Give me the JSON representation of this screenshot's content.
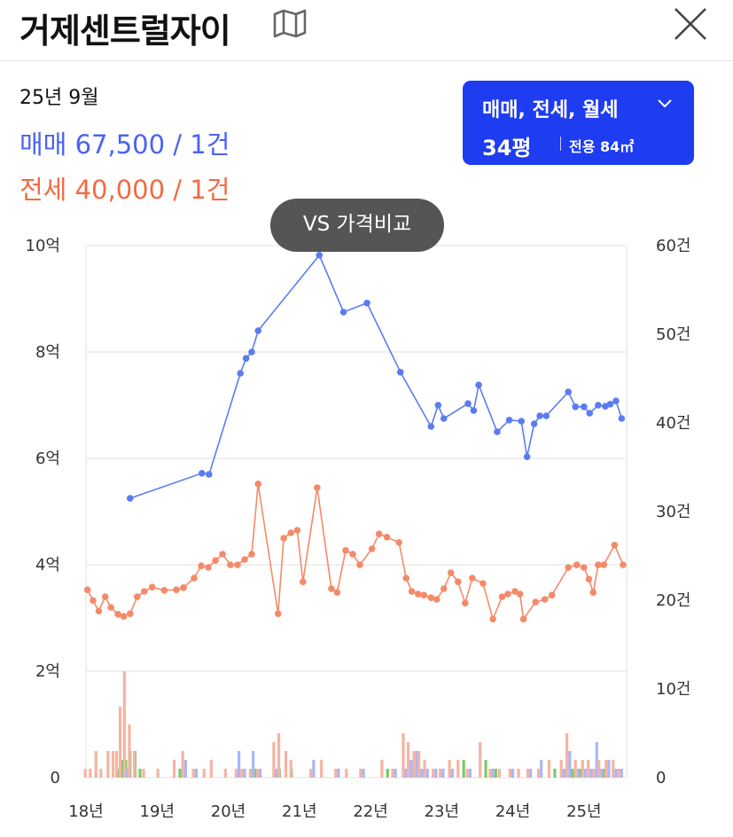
{
  "header": {
    "title": "거제센트럴자이",
    "map_icon": "map-icon",
    "close_icon": "close-icon"
  },
  "summary": {
    "period": "25년 9월",
    "sale_label": "매매",
    "sale_value": "67,500 / 1건",
    "jeonse_label": "전세",
    "jeonse_value": "40,000 / 1건"
  },
  "filter": {
    "label": "매매, 전세, 월세",
    "size_pyeong": "34평",
    "size_area": "전용 84㎡",
    "chevron_icon": "chevron-down-icon"
  },
  "compare_button": {
    "label": "VS 가격비교"
  },
  "colors": {
    "sale": "#5b7cf0",
    "jeonse": "#f48a69",
    "accent": "#1e3cf0",
    "bar_jeonse": "#f6b3a2",
    "bar_sale": "#aab6f7",
    "bar_monthly": "#7cc96a"
  },
  "chart_data": {
    "type": "line",
    "x_ticks": [
      "18년",
      "19년",
      "20년",
      "21년",
      "22년",
      "23년",
      "24년",
      "25년"
    ],
    "y_left": {
      "ticks": [
        "0",
        "2억",
        "4억",
        "6억",
        "8억",
        "10억"
      ],
      "range": [
        0,
        10
      ]
    },
    "y_right": {
      "ticks": [
        "0",
        "10건",
        "20건",
        "30건",
        "40건",
        "50건",
        "60건"
      ],
      "range": [
        0,
        60
      ]
    },
    "grid": true,
    "series": [
      {
        "name": "매매",
        "values": [
          [
            2018.62,
            5.25
          ],
          [
            2019.63,
            5.72
          ],
          [
            2019.73,
            5.7
          ],
          [
            2020.17,
            7.6
          ],
          [
            2020.25,
            7.88
          ],
          [
            2020.33,
            8.0
          ],
          [
            2020.42,
            8.4
          ],
          [
            2021.28,
            9.82
          ],
          [
            2021.62,
            8.75
          ],
          [
            2021.95,
            8.92
          ],
          [
            2022.42,
            7.62
          ],
          [
            2022.85,
            6.6
          ],
          [
            2022.95,
            7.0
          ],
          [
            2023.03,
            6.75
          ],
          [
            2023.37,
            7.03
          ],
          [
            2023.45,
            6.9
          ],
          [
            2023.52,
            7.38
          ],
          [
            2023.78,
            6.5
          ],
          [
            2023.95,
            6.72
          ],
          [
            2024.12,
            6.7
          ],
          [
            2024.2,
            6.03
          ],
          [
            2024.3,
            6.65
          ],
          [
            2024.38,
            6.8
          ],
          [
            2024.47,
            6.8
          ],
          [
            2024.78,
            7.25
          ],
          [
            2024.88,
            6.97
          ],
          [
            2025.0,
            6.97
          ],
          [
            2025.08,
            6.85
          ],
          [
            2025.2,
            7.0
          ],
          [
            2025.3,
            6.98
          ],
          [
            2025.37,
            7.02
          ],
          [
            2025.45,
            7.08
          ],
          [
            2025.53,
            6.75
          ]
        ]
      },
      {
        "name": "전세",
        "values": [
          [
            2018.02,
            3.53
          ],
          [
            2018.1,
            3.33
          ],
          [
            2018.18,
            3.13
          ],
          [
            2018.27,
            3.4
          ],
          [
            2018.35,
            3.2
          ],
          [
            2018.45,
            3.07
          ],
          [
            2018.53,
            3.03
          ],
          [
            2018.62,
            3.08
          ],
          [
            2018.72,
            3.4
          ],
          [
            2018.82,
            3.5
          ],
          [
            2018.93,
            3.58
          ],
          [
            2019.1,
            3.52
          ],
          [
            2019.27,
            3.53
          ],
          [
            2019.37,
            3.57
          ],
          [
            2019.52,
            3.75
          ],
          [
            2019.62,
            3.98
          ],
          [
            2019.72,
            3.95
          ],
          [
            2019.82,
            4.08
          ],
          [
            2019.92,
            4.2
          ],
          [
            2020.03,
            4.0
          ],
          [
            2020.13,
            4.0
          ],
          [
            2020.23,
            4.1
          ],
          [
            2020.33,
            4.2
          ],
          [
            2020.42,
            5.52
          ],
          [
            2020.7,
            3.08
          ],
          [
            2020.78,
            4.5
          ],
          [
            2020.88,
            4.6
          ],
          [
            2020.97,
            4.65
          ],
          [
            2021.05,
            3.68
          ],
          [
            2021.25,
            5.45
          ],
          [
            2021.45,
            3.55
          ],
          [
            2021.53,
            3.48
          ],
          [
            2021.65,
            4.27
          ],
          [
            2021.75,
            4.2
          ],
          [
            2021.85,
            4.0
          ],
          [
            2022.02,
            4.3
          ],
          [
            2022.12,
            4.58
          ],
          [
            2022.23,
            4.52
          ],
          [
            2022.4,
            4.42
          ],
          [
            2022.5,
            3.75
          ],
          [
            2022.58,
            3.5
          ],
          [
            2022.67,
            3.45
          ],
          [
            2022.75,
            3.43
          ],
          [
            2022.85,
            3.38
          ],
          [
            2022.93,
            3.35
          ],
          [
            2023.03,
            3.55
          ],
          [
            2023.13,
            3.85
          ],
          [
            2023.23,
            3.68
          ],
          [
            2023.33,
            3.28
          ],
          [
            2023.43,
            3.75
          ],
          [
            2023.58,
            3.65
          ],
          [
            2023.72,
            2.98
          ],
          [
            2023.85,
            3.4
          ],
          [
            2023.93,
            3.45
          ],
          [
            2024.03,
            3.5
          ],
          [
            2024.1,
            3.45
          ],
          [
            2024.15,
            2.98
          ],
          [
            2024.32,
            3.3
          ],
          [
            2024.45,
            3.35
          ],
          [
            2024.55,
            3.43
          ],
          [
            2024.78,
            3.95
          ],
          [
            2024.9,
            4.0
          ],
          [
            2025.0,
            3.95
          ],
          [
            2025.07,
            3.73
          ],
          [
            2025.13,
            3.48
          ],
          [
            2025.2,
            4.0
          ],
          [
            2025.28,
            4.0
          ],
          [
            2025.43,
            4.37
          ],
          [
            2025.55,
            4.0
          ]
        ]
      }
    ],
    "volume_bars": [
      {
        "x": 2018.03,
        "jeonse": 1,
        "sale": 0,
        "monthly": 0
      },
      {
        "x": 2018.1,
        "jeonse": 1,
        "sale": 0,
        "monthly": 0
      },
      {
        "x": 2018.18,
        "jeonse": 3,
        "sale": 0,
        "monthly": 0
      },
      {
        "x": 2018.25,
        "jeonse": 1,
        "sale": 0,
        "monthly": 0
      },
      {
        "x": 2018.35,
        "jeonse": 3,
        "sale": 0,
        "monthly": 0
      },
      {
        "x": 2018.42,
        "jeonse": 3,
        "sale": 0,
        "monthly": 1
      },
      {
        "x": 2018.47,
        "jeonse": 3,
        "sale": 0,
        "monthly": 2
      },
      {
        "x": 2018.52,
        "jeonse": 8,
        "sale": 0,
        "monthly": 2
      },
      {
        "x": 2018.58,
        "jeonse": 12,
        "sale": 1,
        "monthly": 3
      },
      {
        "x": 2018.65,
        "jeonse": 6,
        "sale": 0,
        "monthly": 3
      },
      {
        "x": 2018.72,
        "jeonse": 3,
        "sale": 0,
        "monthly": 1
      },
      {
        "x": 2018.85,
        "jeonse": 1,
        "sale": 0,
        "monthly": 0
      },
      {
        "x": 2019.05,
        "jeonse": 1,
        "sale": 0,
        "monthly": 0
      },
      {
        "x": 2019.28,
        "jeonse": 2,
        "sale": 0,
        "monthly": 1
      },
      {
        "x": 2019.4,
        "jeonse": 3,
        "sale": 2,
        "monthly": 0
      },
      {
        "x": 2019.55,
        "jeonse": 1,
        "sale": 1,
        "monthly": 0
      },
      {
        "x": 2019.7,
        "jeonse": 1,
        "sale": 0,
        "monthly": 0
      },
      {
        "x": 2019.8,
        "jeonse": 2,
        "sale": 0,
        "monthly": 0
      },
      {
        "x": 2020.0,
        "jeonse": 1,
        "sale": 0,
        "monthly": 0
      },
      {
        "x": 2020.15,
        "jeonse": 1,
        "sale": 3,
        "monthly": 0
      },
      {
        "x": 2020.23,
        "jeonse": 1,
        "sale": 1,
        "monthly": 0
      },
      {
        "x": 2020.35,
        "jeonse": 1,
        "sale": 3,
        "monthly": 1
      },
      {
        "x": 2020.45,
        "jeonse": 1,
        "sale": 1,
        "monthly": 0
      },
      {
        "x": 2020.68,
        "jeonse": 4,
        "sale": 1,
        "monthly": 1
      },
      {
        "x": 2020.75,
        "jeonse": 5,
        "sale": 0,
        "monthly": 0
      },
      {
        "x": 2020.85,
        "jeonse": 3,
        "sale": 0,
        "monthly": 1
      },
      {
        "x": 2020.92,
        "jeonse": 2,
        "sale": 0,
        "monthly": 0
      },
      {
        "x": 2021.2,
        "jeonse": 1,
        "sale": 2,
        "monthly": 0
      },
      {
        "x": 2021.35,
        "jeonse": 2,
        "sale": 0,
        "monthly": 0
      },
      {
        "x": 2021.55,
        "jeonse": 1,
        "sale": 1,
        "monthly": 0
      },
      {
        "x": 2021.7,
        "jeonse": 1,
        "sale": 0,
        "monthly": 0
      },
      {
        "x": 2021.9,
        "jeonse": 1,
        "sale": 1,
        "monthly": 0
      },
      {
        "x": 2022.2,
        "jeonse": 2,
        "sale": 0,
        "monthly": 1
      },
      {
        "x": 2022.35,
        "jeonse": 1,
        "sale": 1,
        "monthly": 0
      },
      {
        "x": 2022.5,
        "jeonse": 5,
        "sale": 1,
        "monthly": 0
      },
      {
        "x": 2022.57,
        "jeonse": 4,
        "sale": 2,
        "monthly": 1
      },
      {
        "x": 2022.65,
        "jeonse": 3,
        "sale": 3,
        "monthly": 0
      },
      {
        "x": 2022.72,
        "jeonse": 3,
        "sale": 1,
        "monthly": 1
      },
      {
        "x": 2022.8,
        "jeonse": 2,
        "sale": 1,
        "monthly": 0
      },
      {
        "x": 2022.92,
        "jeonse": 1,
        "sale": 1,
        "monthly": 0
      },
      {
        "x": 2023.02,
        "jeonse": 1,
        "sale": 1,
        "monthly": 0
      },
      {
        "x": 2023.15,
        "jeonse": 2,
        "sale": 1,
        "monthly": 0
      },
      {
        "x": 2023.27,
        "jeonse": 2,
        "sale": 0,
        "monthly": 2
      },
      {
        "x": 2023.4,
        "jeonse": 1,
        "sale": 1,
        "monthly": 0
      },
      {
        "x": 2023.58,
        "jeonse": 4,
        "sale": 0,
        "monthly": 2
      },
      {
        "x": 2023.72,
        "jeonse": 1,
        "sale": 1,
        "monthly": 1
      },
      {
        "x": 2023.85,
        "jeonse": 1,
        "sale": 0,
        "monthly": 0
      },
      {
        "x": 2024.0,
        "jeonse": 1,
        "sale": 1,
        "monthly": 0
      },
      {
        "x": 2024.12,
        "jeonse": 1,
        "sale": 0,
        "monthly": 0
      },
      {
        "x": 2024.25,
        "jeonse": 1,
        "sale": 1,
        "monthly": 0
      },
      {
        "x": 2024.4,
        "jeonse": 1,
        "sale": 2,
        "monthly": 0
      },
      {
        "x": 2024.55,
        "jeonse": 2,
        "sale": 0,
        "monthly": 1
      },
      {
        "x": 2024.72,
        "jeonse": 2,
        "sale": 1,
        "monthly": 0
      },
      {
        "x": 2024.8,
        "jeonse": 5,
        "sale": 3,
        "monthly": 1
      },
      {
        "x": 2024.92,
        "jeonse": 2,
        "sale": 1,
        "monthly": 1
      },
      {
        "x": 2025.02,
        "jeonse": 2,
        "sale": 1,
        "monthly": 0
      },
      {
        "x": 2025.1,
        "jeonse": 2,
        "sale": 1,
        "monthly": 1
      },
      {
        "x": 2025.18,
        "jeonse": 1,
        "sale": 4,
        "monthly": 0
      },
      {
        "x": 2025.25,
        "jeonse": 2,
        "sale": 1,
        "monthly": 1
      },
      {
        "x": 2025.35,
        "jeonse": 2,
        "sale": 2,
        "monthly": 0
      },
      {
        "x": 2025.45,
        "jeonse": 2,
        "sale": 1,
        "monthly": 0
      },
      {
        "x": 2025.53,
        "jeonse": 1,
        "sale": 1,
        "monthly": 0
      }
    ]
  }
}
